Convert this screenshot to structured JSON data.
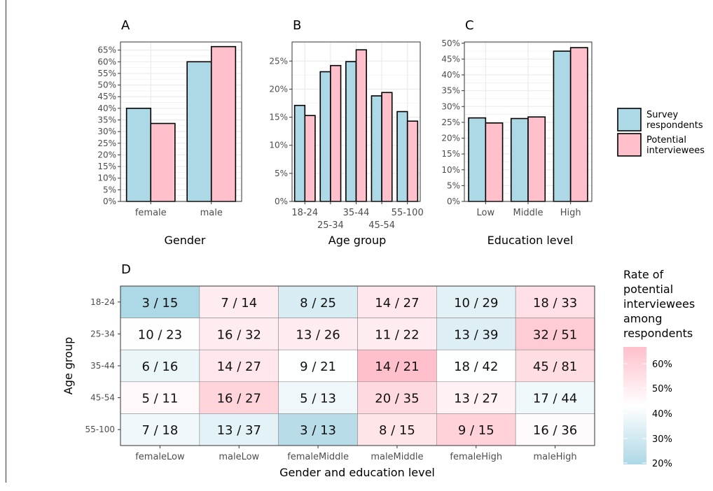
{
  "colors": {
    "survey": "#add8e6",
    "potential": "#ffc0cb",
    "heat_low": "#add8e6",
    "heat_mid": "#ffffff",
    "heat_high": "#ffc0cb",
    "grid": "#ebebeb",
    "tick_text": "#4d4d4d"
  },
  "legend": {
    "series": [
      {
        "label_line1": "Survey",
        "label_line2": "respondents",
        "color": "#add8e6"
      },
      {
        "label_line1": "Potential",
        "label_line2": "interviewees",
        "color": "#ffc0cb"
      }
    ],
    "rate_title": [
      "Rate of",
      "potential",
      "interviewees",
      "among",
      "respondents"
    ],
    "rate_ticks": [
      "60%",
      "50%",
      "40%",
      "30%",
      "20%"
    ]
  },
  "chart_data": [
    {
      "panel": "A",
      "type": "bar",
      "xlabel": "Gender",
      "categories": [
        "female",
        "male"
      ],
      "series": [
        {
          "name": "Survey respondents",
          "values": [
            40,
            60
          ]
        },
        {
          "name": "Potential interviewees",
          "values": [
            33.5,
            66.5
          ]
        }
      ],
      "yticks": [
        "0%",
        "5%",
        "10%",
        "15%",
        "20%",
        "25%",
        "30%",
        "35%",
        "40%",
        "45%",
        "50%",
        "55%",
        "60%",
        "65%"
      ],
      "ylim": [
        0,
        68.5
      ],
      "grid": true
    },
    {
      "panel": "B",
      "type": "bar",
      "xlabel": "Age group",
      "categories": [
        "18-24",
        "25-34",
        "35-44",
        "45-54",
        "55-100"
      ],
      "series": [
        {
          "name": "Survey respondents",
          "values": [
            17.1,
            23.1,
            24.9,
            18.8,
            16.0
          ]
        },
        {
          "name": "Potential interviewees",
          "values": [
            15.3,
            24.2,
            27.0,
            19.4,
            14.3
          ]
        }
      ],
      "yticks": [
        "0%",
        "5%",
        "10%",
        "15%",
        "20%",
        "25%"
      ],
      "ylim": [
        0,
        28.4
      ],
      "grid": true
    },
    {
      "panel": "C",
      "type": "bar",
      "xlabel": "Education level",
      "categories": [
        "Low",
        "Middle",
        "High"
      ],
      "series": [
        {
          "name": "Survey respondents",
          "values": [
            26.4,
            26.2,
            47.5
          ]
        },
        {
          "name": "Potential interviewees",
          "values": [
            24.8,
            26.7,
            48.6
          ]
        }
      ],
      "yticks": [
        "0%",
        "5%",
        "10%",
        "15%",
        "20%",
        "25%",
        "30%",
        "35%",
        "40%",
        "45%",
        "50%"
      ],
      "ylim": [
        0,
        50.4
      ],
      "grid": true
    },
    {
      "panel": "D",
      "type": "heatmap",
      "xlabel": "Gender and education level",
      "ylabel": "Age group",
      "columns": [
        "femaleLow",
        "maleLow",
        "femaleMiddle",
        "maleMiddle",
        "femaleHigh",
        "maleHigh"
      ],
      "rows": [
        "18-24",
        "25-34",
        "35-44",
        "45-54",
        "55-100"
      ],
      "cells": [
        [
          "3 / 15",
          "7 / 14",
          "8 / 25",
          "14 / 27",
          "10 / 29",
          "18 / 33"
        ],
        [
          "10 / 23",
          "16 / 32",
          "13 / 26",
          "11 / 22",
          "13 / 39",
          "32 / 51"
        ],
        [
          "6 / 16",
          "14 / 27",
          "9 / 21",
          "14 / 21",
          "18 / 42",
          "45 / 81"
        ],
        [
          "5 / 11",
          "16 / 27",
          "5 / 13",
          "20 / 35",
          "13 / 27",
          "17 / 44"
        ],
        [
          "7 / 18",
          "13 / 37",
          "3 / 13",
          "8 / 15",
          "9 / 15",
          "16 / 36"
        ]
      ],
      "color_range": [
        0.2,
        0.667
      ]
    }
  ]
}
